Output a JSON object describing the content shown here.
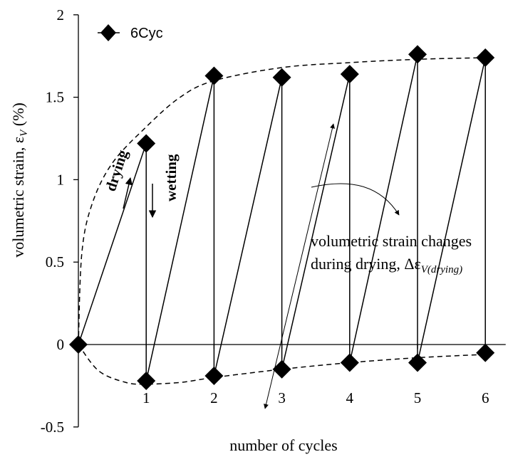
{
  "chart_data": {
    "type": "line",
    "xlabel": "number of cycles",
    "ylabel_main": "volumetric strain, ε",
    "ylabel_sub": "V",
    "ylabel_unit": " (%)",
    "xlim": [
      0,
      6.3
    ],
    "ylim": [
      -0.5,
      2
    ],
    "x_ticks": [
      1,
      2,
      3,
      4,
      5,
      6
    ],
    "y_ticks": [
      -0.5,
      0,
      0.5,
      1,
      1.5,
      2
    ],
    "y_tick_labels": [
      "-0.5",
      "0",
      "0.5",
      "1",
      "1.5",
      "2"
    ],
    "legend": {
      "label": "6Cyc",
      "placement": "top-left"
    },
    "series": [
      {
        "name": "6Cyc",
        "points": [
          {
            "x": 0,
            "y": 0
          },
          {
            "x": 1,
            "y": 1.22
          },
          {
            "x": 1,
            "y": -0.22
          },
          {
            "x": 2,
            "y": 1.63
          },
          {
            "x": 2,
            "y": -0.19
          },
          {
            "x": 3,
            "y": 1.62
          },
          {
            "x": 3,
            "y": -0.15
          },
          {
            "x": 4,
            "y": 1.64
          },
          {
            "x": 4,
            "y": -0.11
          },
          {
            "x": 5,
            "y": 1.76
          },
          {
            "x": 5,
            "y": -0.11
          },
          {
            "x": 6,
            "y": 1.74
          },
          {
            "x": 6,
            "y": -0.05
          }
        ]
      }
    ],
    "envelopes": [
      {
        "points": [
          [
            0,
            0
          ],
          [
            0.05,
            0.55
          ],
          [
            0.2,
            0.85
          ],
          [
            0.5,
            1.1
          ],
          [
            1,
            1.32
          ],
          [
            1.5,
            1.5
          ],
          [
            2,
            1.6
          ],
          [
            3,
            1.68
          ],
          [
            4,
            1.71
          ],
          [
            5,
            1.73
          ],
          [
            6,
            1.74
          ]
        ]
      },
      {
        "points": [
          [
            0,
            0
          ],
          [
            0.3,
            -0.16
          ],
          [
            0.7,
            -0.23
          ],
          [
            1,
            -0.24
          ],
          [
            1.5,
            -0.23
          ],
          [
            2,
            -0.2
          ],
          [
            3,
            -0.15
          ],
          [
            4,
            -0.11
          ],
          [
            5,
            -0.08
          ],
          [
            6,
            -0.06
          ]
        ]
      }
    ],
    "annotations": {
      "drying": "drying",
      "wetting": "wetting",
      "strain_line1": "volumetric strain changes",
      "strain_line2_main": "during drying, Δε",
      "strain_line2_sub": "V(drying)"
    }
  }
}
